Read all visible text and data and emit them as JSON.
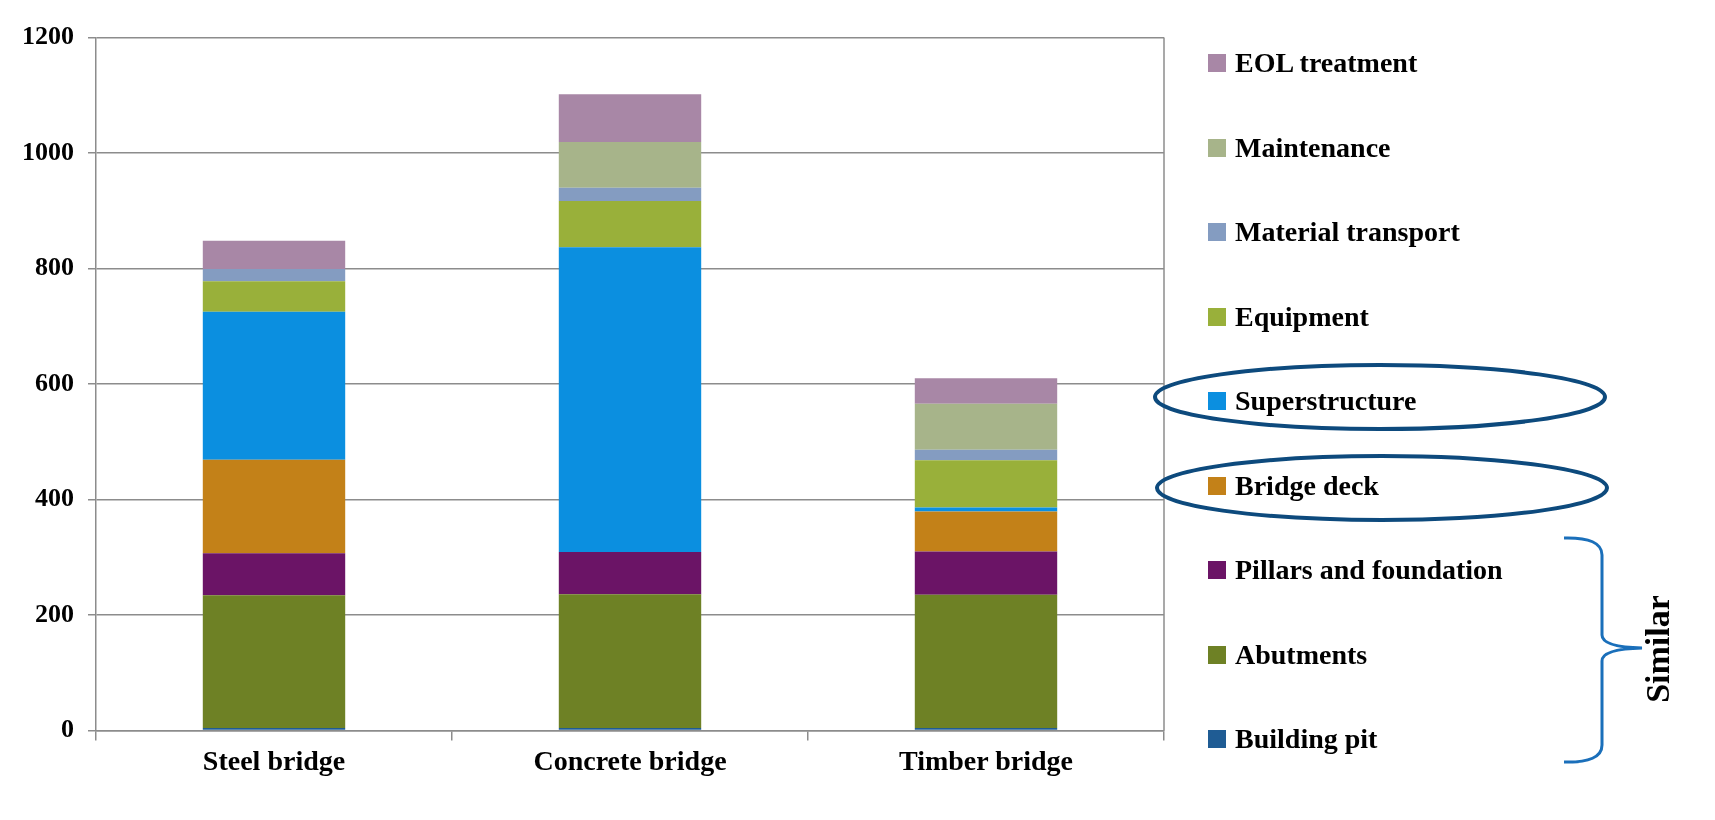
{
  "chart_data": {
    "type": "bar",
    "stacked": true,
    "categories": [
      "Steel bridge",
      "Concrete bridge",
      "Timber bridge"
    ],
    "series": [
      {
        "name": "Building pit",
        "color": "#1f5c94",
        "values": [
          4,
          4,
          4
        ]
      },
      {
        "name": "Abutments",
        "color": "#6e8125",
        "values": [
          230,
          232,
          231
        ]
      },
      {
        "name": "Pillars and foundation",
        "color": "#6b1466",
        "values": [
          73,
          73,
          75
        ]
      },
      {
        "name": "Bridge deck",
        "color": "#c38118",
        "values": [
          162,
          0,
          69
        ]
      },
      {
        "name": "Superstructure",
        "color": "#0b8fe0",
        "values": [
          256,
          528,
          7
        ]
      },
      {
        "name": "Equipment",
        "color": "#99b03a",
        "values": [
          53,
          80,
          82
        ]
      },
      {
        "name": "Material transport",
        "color": "#849cc1",
        "values": [
          21,
          23,
          18
        ]
      },
      {
        "name": "Maintenance",
        "color": "#a7b48a",
        "values": [
          0,
          79,
          80
        ]
      },
      {
        "name": "EOL treatment",
        "color": "#a887a6",
        "values": [
          49,
          83,
          44
        ]
      }
    ],
    "ylim": [
      0,
      1200
    ],
    "yticks": [
      0,
      200,
      400,
      600,
      800,
      1000,
      1200
    ],
    "grid": "y",
    "legend": "right",
    "annotations": [
      "Similar"
    ]
  }
}
